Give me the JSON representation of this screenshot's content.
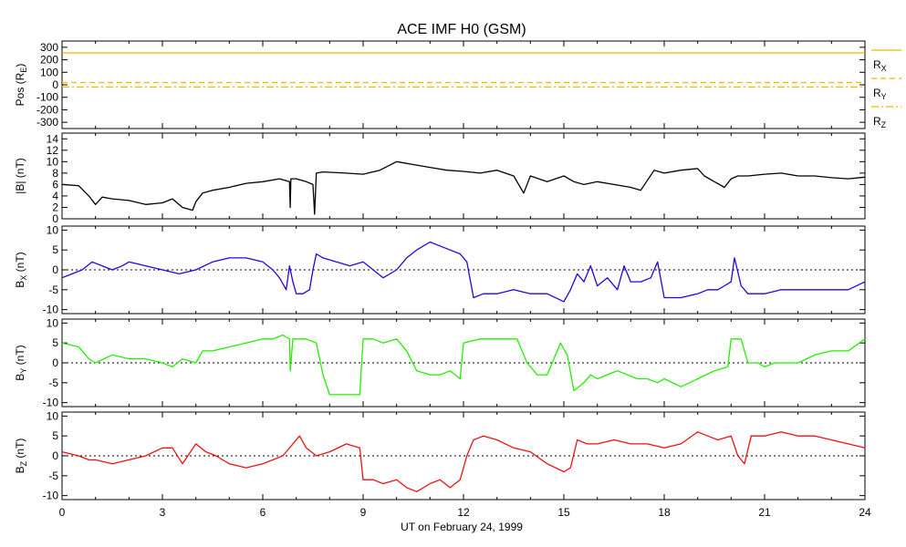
{
  "chart_data": {
    "type": "line",
    "title": "ACE IMF H0 (GSM)",
    "xlabel": "UT on February 24, 1999",
    "xlim": [
      0,
      24
    ],
    "xticks": [
      "0",
      "3",
      "6",
      "9",
      "12",
      "15",
      "18",
      "21",
      "24"
    ],
    "panels": [
      {
        "id": "pos",
        "ylabel_main": "Pos (R",
        "ylabel_sub": "E",
        "ylabel_end": ")",
        "ylim": [
          -350,
          350
        ],
        "yticks": [
          300,
          200,
          100,
          0,
          -100,
          -200,
          -300
        ],
        "zero_line": false,
        "legend": [
          {
            "name": "R",
            "sub": "X",
            "style": "solid",
            "color": "#f5b400"
          },
          {
            "name": "R",
            "sub": "Y",
            "style": "dashed",
            "color": "#f5b400"
          },
          {
            "name": "R",
            "sub": "Z",
            "style": "dashdot",
            "color": "#f5b400"
          }
        ],
        "series": [
          {
            "name": "RX",
            "color": "#f5b400",
            "style": "solid",
            "x": [
              0,
              24
            ],
            "y": [
              255,
              255
            ]
          },
          {
            "name": "RY",
            "color": "#f5b400",
            "style": "dashed",
            "x": [
              0,
              24
            ],
            "y": [
              18,
              18
            ]
          },
          {
            "name": "RZ",
            "color": "#f5b400",
            "style": "dashdot",
            "x": [
              0,
              24
            ],
            "y": [
              -18,
              -18
            ]
          }
        ]
      },
      {
        "id": "bmag",
        "ylabel_main": "|B| (nT)",
        "ylim": [
          0,
          15
        ],
        "yticks": [
          14,
          12,
          10,
          8,
          6,
          4,
          2,
          0
        ],
        "zero_line": false,
        "series": [
          {
            "name": "|B|",
            "color": "#000000",
            "x": [
              0,
              0.5,
              0.8,
              1.0,
              1.2,
              1.5,
              2.0,
              2.5,
              3.0,
              3.3,
              3.6,
              3.9,
              4.0,
              4.2,
              4.5,
              5.0,
              5.5,
              6.0,
              6.5,
              6.8,
              6.82,
              6.84,
              7.0,
              7.3,
              7.5,
              7.55,
              7.6,
              7.8,
              8.5,
              9.0,
              9.5,
              10.0,
              10.5,
              11.0,
              11.5,
              12.0,
              12.5,
              13.0,
              13.5,
              13.8,
              14.0,
              14.5,
              15.0,
              15.3,
              15.6,
              16.0,
              16.5,
              17.0,
              17.3,
              17.7,
              18.0,
              18.5,
              19.0,
              19.2,
              19.5,
              19.8,
              20.0,
              20.2,
              20.5,
              21.0,
              21.5,
              22.0,
              22.5,
              23.0,
              23.5,
              24.0
            ],
            "y": [
              6.0,
              5.8,
              4.0,
              2.5,
              3.8,
              3.5,
              3.2,
              2.5,
              2.8,
              3.5,
              2.0,
              1.5,
              3.0,
              4.5,
              5.0,
              5.5,
              6.2,
              6.5,
              7.0,
              6.5,
              2.0,
              7.0,
              7.0,
              6.5,
              6.0,
              0.8,
              8.0,
              8.2,
              8.0,
              7.8,
              8.5,
              10.0,
              9.5,
              9.0,
              8.5,
              8.3,
              8.0,
              8.5,
              7.5,
              4.5,
              7.5,
              6.5,
              7.5,
              6.5,
              6.0,
              6.5,
              6.0,
              5.5,
              5.0,
              8.5,
              8.0,
              8.5,
              8.8,
              7.5,
              6.5,
              5.5,
              7.0,
              7.5,
              7.5,
              7.8,
              8.0,
              7.5,
              7.5,
              7.2,
              7.0,
              7.3
            ]
          }
        ]
      },
      {
        "id": "bx",
        "ylabel_main": "B",
        "ylabel_sub": "X",
        "ylabel_end": " (nT)",
        "ylim": [
          -11,
          11
        ],
        "yticks": [
          10,
          5,
          0,
          -5,
          -10
        ],
        "zero_line": true,
        "series": [
          {
            "name": "BX",
            "color": "#2b00e0",
            "x": [
              0,
              0.3,
              0.6,
              0.9,
              1.2,
              1.5,
              1.8,
              2.0,
              2.5,
              3.0,
              3.5,
              4.0,
              4.5,
              5.0,
              5.5,
              6.0,
              6.3,
              6.5,
              6.7,
              6.8,
              6.9,
              7.0,
              7.2,
              7.4,
              7.5,
              7.6,
              7.8,
              8.2,
              8.6,
              9.0,
              9.3,
              9.6,
              10.0,
              10.3,
              10.6,
              11.0,
              11.3,
              11.6,
              11.9,
              12.1,
              12.3,
              12.6,
              13.0,
              13.5,
              14.0,
              14.5,
              15.0,
              15.2,
              15.4,
              15.6,
              15.8,
              16.0,
              16.3,
              16.6,
              16.8,
              17.0,
              17.3,
              17.6,
              17.8,
              18.0,
              18.5,
              19.0,
              19.3,
              19.6,
              19.8,
              20.0,
              20.1,
              20.3,
              20.5,
              20.7,
              21.0,
              21.5,
              22.0,
              22.5,
              23.0,
              23.5,
              24.0
            ],
            "y": [
              -2,
              -1,
              0,
              2,
              1,
              0,
              1,
              2,
              1,
              0,
              -1,
              0,
              2,
              3,
              3,
              2,
              0,
              -2,
              -5,
              1,
              -3,
              -6,
              -6,
              -5,
              0,
              4,
              3,
              2,
              1,
              2,
              0,
              -2,
              0,
              3,
              5,
              7,
              6,
              5,
              4,
              2,
              -7,
              -6,
              -6,
              -5,
              -6,
              -6,
              -8,
              -5,
              -1,
              -3,
              1,
              -4,
              -2,
              -5,
              1,
              -3,
              -3,
              -2,
              2,
              -7,
              -7,
              -6,
              -5,
              -5,
              -4,
              -3,
              3,
              -4,
              -6,
              -6,
              -6,
              -5,
              -5,
              -5,
              -5,
              -5,
              -3
            ]
          }
        ]
      },
      {
        "id": "by",
        "ylabel_main": "B",
        "ylabel_sub": "Y",
        "ylabel_end": " (nT)",
        "ylim": [
          -11,
          11
        ],
        "yticks": [
          10,
          5,
          0,
          -5,
          -10
        ],
        "zero_line": true,
        "series": [
          {
            "name": "BY",
            "color": "#22ee00",
            "x": [
              0,
              0.5,
              0.8,
              1.0,
              1.5,
              2.0,
              2.5,
              3.0,
              3.3,
              3.6,
              4.0,
              4.2,
              4.5,
              5.0,
              5.5,
              6.0,
              6.3,
              6.6,
              6.8,
              6.82,
              6.9,
              7.3,
              7.6,
              7.8,
              8.0,
              8.5,
              8.9,
              9.0,
              9.3,
              9.6,
              10.0,
              10.3,
              10.6,
              11.0,
              11.3,
              11.6,
              11.9,
              12.0,
              12.5,
              13.0,
              13.3,
              13.6,
              13.9,
              14.2,
              14.5,
              14.9,
              15.1,
              15.3,
              15.6,
              15.8,
              16.0,
              16.3,
              16.6,
              16.9,
              17.2,
              17.5,
              17.8,
              18.0,
              18.5,
              19.0,
              19.5,
              19.9,
              20.0,
              20.3,
              20.5,
              20.8,
              21.0,
              21.3,
              21.6,
              22.0,
              22.5,
              23.0,
              23.5,
              24.0
            ],
            "y": [
              5,
              4,
              1,
              0,
              2,
              1,
              1,
              0,
              -1,
              1,
              0,
              3,
              3,
              4,
              5,
              6,
              6,
              7,
              6,
              -2,
              6,
              6,
              5,
              -3,
              -8,
              -8,
              -8,
              6,
              6,
              5,
              6,
              3,
              -2,
              -3,
              -3,
              -2,
              -4,
              5,
              6,
              6,
              6,
              6,
              0,
              -3,
              -3,
              5,
              2,
              -7,
              -5,
              -3,
              -4,
              -3,
              -2,
              -3,
              -4,
              -4,
              -5,
              -4,
              -6,
              -4,
              -2,
              -1,
              6,
              6,
              0,
              0,
              -1,
              0,
              0,
              0,
              2,
              3,
              3,
              6
            ]
          }
        ]
      },
      {
        "id": "bz",
        "ylabel_main": "B",
        "ylabel_sub": "Z",
        "ylabel_end": " (nT)",
        "ylim": [
          -11,
          11
        ],
        "yticks": [
          10,
          5,
          0,
          -5,
          -10
        ],
        "zero_line": true,
        "series": [
          {
            "name": "BZ",
            "color": "#ee1111",
            "x": [
              0,
              0.5,
              0.8,
              1.0,
              1.5,
              2.0,
              2.5,
              3.0,
              3.3,
              3.6,
              4.0,
              4.3,
              4.6,
              5.0,
              5.5,
              6.0,
              6.3,
              6.6,
              6.9,
              7.1,
              7.3,
              7.6,
              8.0,
              8.5,
              8.9,
              9.0,
              9.3,
              9.6,
              10.0,
              10.3,
              10.6,
              11.0,
              11.3,
              11.6,
              11.9,
              12.1,
              12.3,
              12.6,
              13.0,
              13.5,
              14.0,
              14.5,
              15.0,
              15.2,
              15.4,
              15.7,
              16.0,
              16.5,
              17.0,
              17.5,
              18.0,
              18.5,
              19.0,
              19.3,
              19.6,
              20.0,
              20.2,
              20.4,
              20.6,
              20.8,
              21.0,
              21.5,
              22.0,
              22.5,
              23.0,
              23.5,
              24.0
            ],
            "y": [
              1,
              0,
              -1,
              -1,
              -2,
              -1,
              0,
              2,
              2,
              -2,
              3,
              1,
              0,
              -2,
              -3,
              -2,
              -1,
              0,
              3,
              5,
              2,
              0,
              1,
              3,
              2,
              -6,
              -6,
              -7,
              -6,
              -8,
              -9,
              -7,
              -6,
              -8,
              -6,
              0,
              4,
              5,
              4,
              2,
              1,
              -2,
              -4,
              -3,
              4,
              3,
              3,
              4,
              3,
              3,
              2,
              3,
              6,
              5,
              4,
              5,
              0,
              -2,
              5,
              5,
              5,
              6,
              5,
              5,
              4,
              3,
              2
            ]
          }
        ]
      }
    ]
  }
}
